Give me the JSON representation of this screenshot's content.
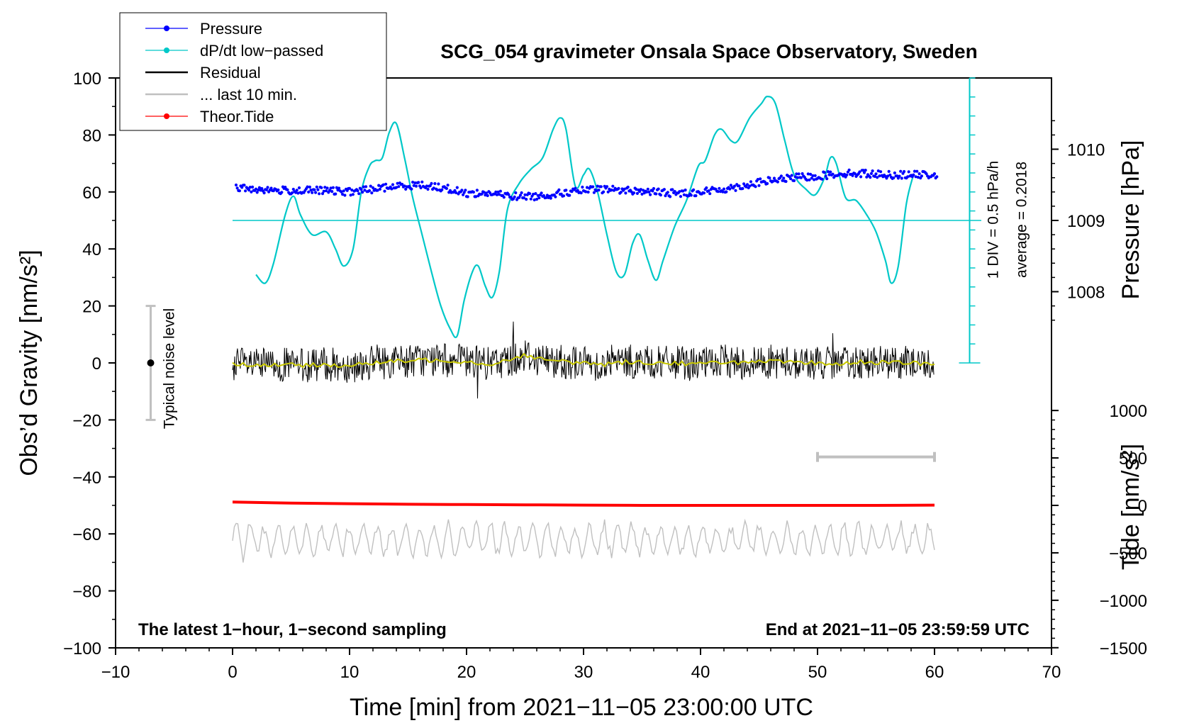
{
  "chart_data": {
    "type": "line",
    "title": "SCG_054 gravimeter Onsala Space Observatory, Sweden",
    "xlabel": "Time [min] from 2021−11−05 23:00:00 UTC",
    "ylabel_left": "Obs’d Gravity [nm/s²]",
    "ylabel_pressure": "Pressure [hPa]",
    "ylabel_tide": "Tide [nm/s²]",
    "xlim": [
      -10,
      70
    ],
    "ylim": [
      -100,
      100
    ],
    "x_ticks": [
      "−10",
      "0",
      "10",
      "20",
      "30",
      "40",
      "50",
      "60",
      "70"
    ],
    "x_tick_values": [
      -10,
      0,
      10,
      20,
      30,
      40,
      50,
      60,
      70
    ],
    "y_ticks": [
      "100",
      "80",
      "60",
      "40",
      "20",
      "0",
      "−20",
      "−40",
      "−60",
      "−80",
      "−100"
    ],
    "y_tick_values": [
      100,
      80,
      60,
      40,
      20,
      0,
      -20,
      -40,
      -60,
      -80,
      -100
    ],
    "pressure_ticks": [
      "1010",
      "1009",
      "1008"
    ],
    "pressure_tick_values": [
      1010,
      1009,
      1008
    ],
    "pressure_scale": {
      "hpa_at_gravity_50": 1009,
      "gravity_per_hpa": 25
    },
    "tide_ticks": [
      "1000",
      "500",
      "0",
      "−500",
      "−1000",
      "−1500"
    ],
    "tide_tick_values": [
      1000,
      500,
      0,
      -500,
      -1000,
      -1500
    ],
    "tide_scale": {
      "tide_at_gravity_minus50": 0,
      "gravity_per_1000_tide": 33.3
    },
    "legend": {
      "position": "top-left",
      "entries": [
        {
          "label": "Pressure",
          "color": "#0000ff",
          "marker": "dot"
        },
        {
          "label": "dP/dt low−passed",
          "color": "#00c8c8",
          "marker": "dot"
        },
        {
          "label": "Residual",
          "color": "#000000",
          "marker": "none"
        },
        {
          "label": "... last 10 min.",
          "color": "#c0c0c0",
          "marker": "none"
        },
        {
          "label": "Theor.Tide",
          "color": "#ff0000",
          "marker": "dot"
        }
      ]
    },
    "annotations": {
      "bottom_left": "The latest 1−hour, 1−second sampling",
      "bottom_right": "End at 2021−11−05 23:59:59 UTC",
      "noise_label": "Typical noise level",
      "dpdt_scale": "1 DIV = 0.5 hPa/h",
      "dpdt_average": "average = 0.2018"
    },
    "noise_bar": {
      "x": -7,
      "center": 0,
      "half_range": 20
    },
    "ten_minute_bar": {
      "x_start": 50,
      "x_end": 60,
      "y": -33
    },
    "dpdt_reference_line": {
      "y": 50,
      "x_start": 0,
      "x_end": 64
    },
    "dpdt_scale_bar": {
      "x": 63,
      "y_bottom": 0,
      "y_top": 100,
      "divisions": 15
    },
    "series": [
      {
        "name": "Pressure",
        "color": "#0000ff",
        "points": [
          [
            0,
            61.5
          ],
          [
            2,
            61
          ],
          [
            4,
            60.5
          ],
          [
            6,
            60.5
          ],
          [
            8,
            60.5
          ],
          [
            10,
            60
          ],
          [
            12,
            61
          ],
          [
            14,
            62
          ],
          [
            16,
            62.5
          ],
          [
            18,
            61.5
          ],
          [
            20,
            59.5
          ],
          [
            22,
            59.5
          ],
          [
            24,
            58.5
          ],
          [
            26,
            58.5
          ],
          [
            28,
            59.5
          ],
          [
            30,
            60.5
          ],
          [
            32,
            61
          ],
          [
            34,
            60.5
          ],
          [
            36,
            60
          ],
          [
            38,
            59.5
          ],
          [
            40,
            60
          ],
          [
            42,
            61
          ],
          [
            44,
            62.5
          ],
          [
            46,
            64
          ],
          [
            48,
            65
          ],
          [
            50,
            65.5
          ],
          [
            52,
            66.5
          ],
          [
            54,
            66.5
          ],
          [
            56,
            66
          ],
          [
            58,
            66
          ],
          [
            60,
            66
          ]
        ]
      },
      {
        "name": "dP/dt low−passed",
        "color": "#00c8c8",
        "points": [
          [
            2,
            31
          ],
          [
            2.8,
            28
          ],
          [
            3.5,
            35
          ],
          [
            4.5,
            52
          ],
          [
            5.2,
            58.5
          ],
          [
            5.8,
            52
          ],
          [
            6.8,
            45
          ],
          [
            8,
            46
          ],
          [
            8.8,
            40
          ],
          [
            9.5,
            34
          ],
          [
            10.3,
            40
          ],
          [
            11,
            60
          ],
          [
            11.7,
            69
          ],
          [
            12.2,
            71
          ],
          [
            12.8,
            72
          ],
          [
            13.4,
            81
          ],
          [
            14,
            84
          ],
          [
            14.7,
            72
          ],
          [
            15.4,
            58
          ],
          [
            16.2,
            45
          ],
          [
            17,
            32
          ],
          [
            17.8,
            20
          ],
          [
            18.6,
            12
          ],
          [
            19.2,
            9.5
          ],
          [
            19.8,
            22
          ],
          [
            20.5,
            32
          ],
          [
            21,
            34
          ],
          [
            21.6,
            27
          ],
          [
            22.2,
            23
          ],
          [
            22.8,
            32
          ],
          [
            23.5,
            54
          ],
          [
            24.5,
            63
          ],
          [
            25.5,
            68
          ],
          [
            26.5,
            72
          ],
          [
            27.4,
            82
          ],
          [
            28,
            86
          ],
          [
            28.5,
            82
          ],
          [
            29.3,
            62
          ],
          [
            30,
            66
          ],
          [
            30.5,
            68
          ],
          [
            31.2,
            60
          ],
          [
            32,
            45
          ],
          [
            32.8,
            32
          ],
          [
            33.5,
            31
          ],
          [
            34.2,
            42
          ],
          [
            34.8,
            45
          ],
          [
            35.5,
            36
          ],
          [
            36.2,
            29
          ],
          [
            36.8,
            36
          ],
          [
            37.8,
            48
          ],
          [
            38.8,
            57
          ],
          [
            39.8,
            69
          ],
          [
            40.4,
            71
          ],
          [
            41.2,
            80
          ],
          [
            41.8,
            82
          ],
          [
            42.6,
            78
          ],
          [
            43.2,
            78
          ],
          [
            44.2,
            86
          ],
          [
            45.2,
            91
          ],
          [
            45.7,
            93.5
          ],
          [
            46.4,
            91
          ],
          [
            47.2,
            78
          ],
          [
            48,
            66
          ],
          [
            49,
            61
          ],
          [
            49.8,
            59
          ],
          [
            50.6,
            65
          ],
          [
            51.1,
            72
          ],
          [
            51.6,
            70
          ],
          [
            52.4,
            58
          ],
          [
            53.3,
            57
          ],
          [
            54.2,
            52
          ],
          [
            55,
            46
          ],
          [
            55.8,
            36
          ],
          [
            56.3,
            28
          ],
          [
            56.9,
            34
          ],
          [
            57.6,
            56
          ],
          [
            58.2,
            66
          ]
        ]
      },
      {
        "name": "Residual running mean",
        "color": "#c8c800",
        "points": [
          [
            0,
            0
          ],
          [
            2,
            -1
          ],
          [
            4,
            -0.5
          ],
          [
            6,
            -1
          ],
          [
            8,
            -0.5
          ],
          [
            10,
            -1
          ],
          [
            12,
            0
          ],
          [
            14,
            0.5
          ],
          [
            16,
            1
          ],
          [
            18,
            1
          ],
          [
            20,
            0.5
          ],
          [
            22,
            -0.5
          ],
          [
            24,
            1.5
          ],
          [
            25,
            3
          ],
          [
            26,
            1.5
          ],
          [
            28,
            0.5
          ],
          [
            30,
            0
          ],
          [
            32,
            -0.5
          ],
          [
            34,
            0.5
          ],
          [
            36,
            0
          ],
          [
            38,
            0
          ],
          [
            40,
            -0.5
          ],
          [
            42,
            0.5
          ],
          [
            44,
            0
          ],
          [
            46,
            0.5
          ],
          [
            48,
            0
          ],
          [
            50,
            0
          ],
          [
            52,
            -0.5
          ],
          [
            54,
            0.5
          ],
          [
            56,
            0
          ],
          [
            58,
            0
          ],
          [
            60,
            -0.5
          ]
        ]
      },
      {
        "name": "Theor.Tide",
        "color": "#ff0000",
        "points": [
          [
            0,
            -48.8
          ],
          [
            5,
            -49.2
          ],
          [
            10,
            -49.4
          ],
          [
            15,
            -49.6
          ],
          [
            20,
            -49.7
          ],
          [
            25,
            -49.8
          ],
          [
            30,
            -49.9
          ],
          [
            35,
            -50
          ],
          [
            40,
            -50
          ],
          [
            45,
            -50
          ],
          [
            50,
            -50
          ],
          [
            55,
            -50
          ],
          [
            60,
            -49.9
          ]
        ]
      }
    ],
    "residual_band": {
      "name": "Residual",
      "color": "#000000",
      "center": 0,
      "typical_amplitude": 6,
      "max_excursion": 13,
      "x_range": [
        0,
        60
      ]
    },
    "last_10min_band": {
      "name": "... last 10 min.",
      "color": "#c0c0c0",
      "center": -62,
      "typical_amplitude": 6,
      "x_range": [
        0,
        60
      ]
    }
  }
}
